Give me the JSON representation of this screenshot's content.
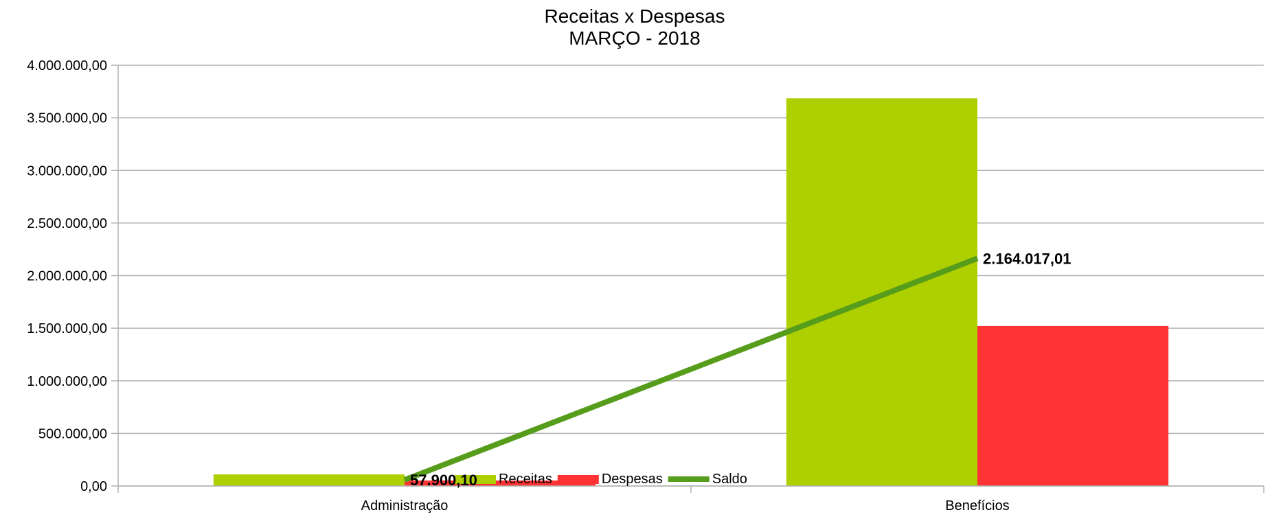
{
  "chart_data": {
    "type": "bar",
    "title_lines": [
      "Receitas x Despesas",
      "MARÇO - 2018"
    ],
    "categories": [
      "Administração",
      "Benefícios"
    ],
    "series": [
      {
        "name": "Receitas",
        "kind": "bar",
        "color": "#aecf00",
        "values": [
          110000,
          3685000
        ]
      },
      {
        "name": "Despesas",
        "kind": "bar",
        "color": "#ff3333",
        "values": [
          52100,
          1520983
        ]
      },
      {
        "name": "Saldo",
        "kind": "line",
        "color": "#579d1c",
        "values": [
          57900.1,
          2164017.01
        ],
        "labels": [
          "57.900,10",
          "2.164.017,01"
        ]
      }
    ],
    "ylim": [
      0,
      4000000
    ],
    "yticks": [
      0,
      500000,
      1000000,
      1500000,
      2000000,
      2500000,
      3000000,
      3500000,
      4000000
    ],
    "ytick_labels": [
      "0,00",
      "500.000,00",
      "1.000.000,00",
      "1.500.000,00",
      "2.000.000,00",
      "2.500.000,00",
      "3.000.000,00",
      "3.500.000,00",
      "4.000.000,00"
    ],
    "grid": true,
    "legend_position": "bottom-inside"
  }
}
